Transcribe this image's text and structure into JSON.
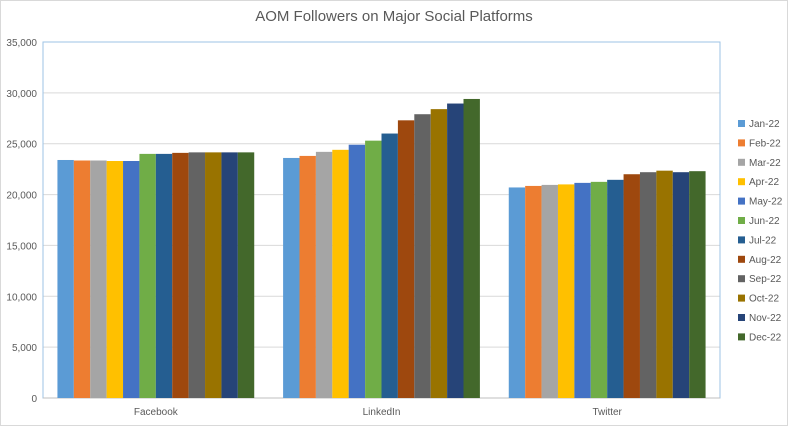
{
  "chart_data": {
    "type": "bar",
    "title": "AOM Followers on Major Social Platforms",
    "xlabel": "",
    "ylabel": "",
    "ylim": [
      0,
      35000
    ],
    "yticks": [
      0,
      5000,
      10000,
      15000,
      20000,
      25000,
      30000,
      35000
    ],
    "ytick_labels": [
      "0",
      "5,000",
      "10,000",
      "15,000",
      "20,000",
      "25,000",
      "30,000",
      "35,000"
    ],
    "grid": true,
    "legend_position": "right",
    "categories": [
      "Facebook",
      "LinkedIn",
      "Twitter"
    ],
    "series": [
      {
        "name": "Jan-22",
        "color": "#5B9BD5",
        "values": [
          23400,
          23600,
          20700
        ]
      },
      {
        "name": "Feb-22",
        "color": "#ED7D31",
        "values": [
          23350,
          23800,
          20850
        ]
      },
      {
        "name": "Mar-22",
        "color": "#A5A5A5",
        "values": [
          23350,
          24200,
          20950
        ]
      },
      {
        "name": "Apr-22",
        "color": "#FFC000",
        "values": [
          23300,
          24400,
          21000
        ]
      },
      {
        "name": "May-22",
        "color": "#4472C4",
        "values": [
          23300,
          24900,
          21150
        ]
      },
      {
        "name": "Jun-22",
        "color": "#70AD47",
        "values": [
          24000,
          25300,
          21250
        ]
      },
      {
        "name": "Jul-22",
        "color": "#255E91",
        "values": [
          24000,
          26000,
          21450
        ]
      },
      {
        "name": "Aug-22",
        "color": "#9E480E",
        "values": [
          24100,
          27300,
          22000
        ]
      },
      {
        "name": "Sep-22",
        "color": "#636363",
        "values": [
          24150,
          27900,
          22200
        ]
      },
      {
        "name": "Oct-22",
        "color": "#997300",
        "values": [
          24150,
          28400,
          22350
        ]
      },
      {
        "name": "Nov-22",
        "color": "#264478",
        "values": [
          24150,
          28950,
          22200
        ]
      },
      {
        "name": "Dec-22",
        "color": "#43682B",
        "values": [
          24150,
          29400,
          22300
        ]
      }
    ]
  }
}
